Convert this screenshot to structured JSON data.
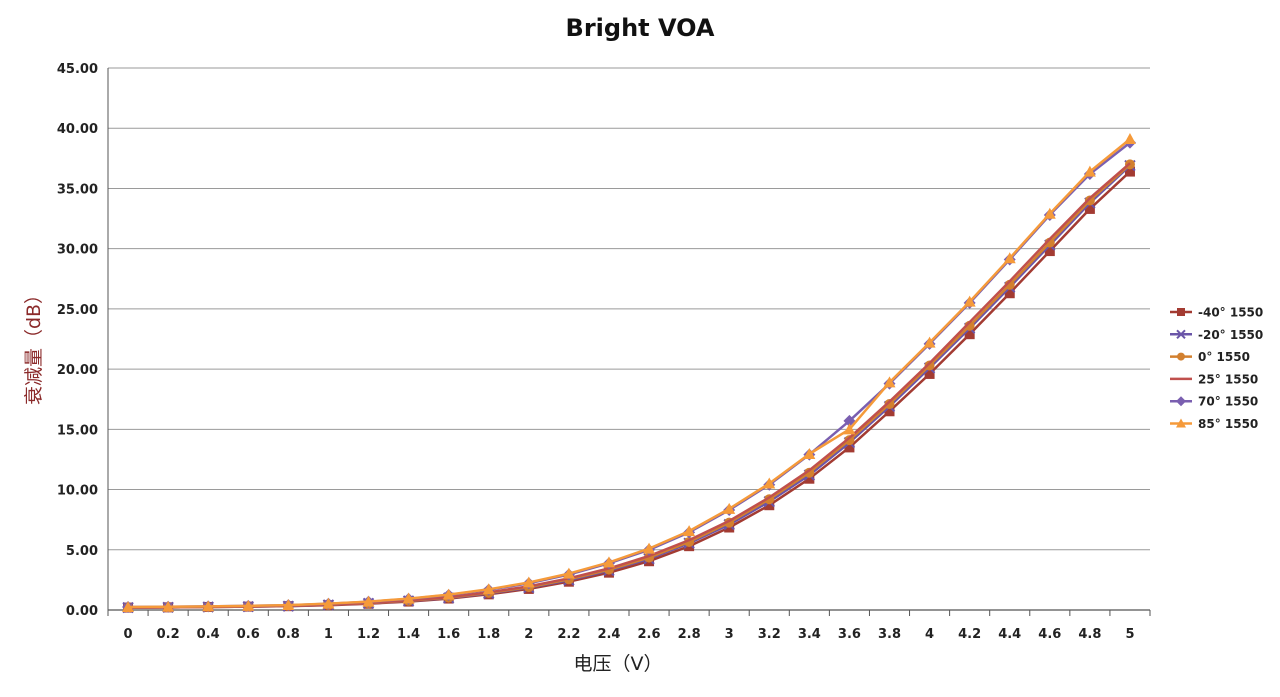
{
  "chart_data": {
    "type": "line",
    "title": "Bright VOA",
    "xlabel": "电压（V）",
    "ylabel": "衰减量（dB）",
    "x": [
      "0",
      "0.2",
      "0.4",
      "0.6",
      "0.8",
      "1",
      "1.2",
      "1.4",
      "1.6",
      "1.8",
      "2",
      "2.2",
      "2.4",
      "2.6",
      "2.8",
      "3",
      "3.2",
      "3.4",
      "3.6",
      "3.8",
      "4",
      "4.2",
      "4.4",
      "4.6",
      "4.8",
      "5"
    ],
    "y_ticks": [
      "0.00",
      "5.00",
      "10.00",
      "15.00",
      "20.00",
      "25.00",
      "30.00",
      "35.00",
      "40.00",
      "45.00"
    ],
    "ylim": [
      0,
      45
    ],
    "grid": "horizontal",
    "legend_position": "right",
    "series": [
      {
        "name": "-40° 1550",
        "color": "#a33b32",
        "marker": "square",
        "values": [
          0.2,
          0.22,
          0.25,
          0.28,
          0.32,
          0.4,
          0.52,
          0.7,
          0.95,
          1.3,
          1.75,
          2.35,
          3.1,
          4.05,
          5.3,
          6.85,
          8.7,
          10.9,
          13.5,
          16.5,
          19.6,
          22.9,
          26.3,
          29.8,
          33.3,
          36.4
        ]
      },
      {
        "name": "-20° 1550",
        "color": "#6a55a8",
        "marker": "x",
        "values": [
          0.2,
          0.22,
          0.25,
          0.28,
          0.32,
          0.42,
          0.55,
          0.75,
          1.0,
          1.38,
          1.85,
          2.48,
          3.28,
          4.25,
          5.55,
          7.1,
          9.0,
          11.2,
          13.9,
          16.9,
          20.1,
          23.4,
          26.8,
          30.3,
          33.8,
          36.9
        ]
      },
      {
        "name": "0° 1550",
        "color": "#d2802f",
        "marker": "circle",
        "values": [
          0.2,
          0.22,
          0.25,
          0.28,
          0.33,
          0.43,
          0.56,
          0.77,
          1.03,
          1.42,
          1.9,
          2.55,
          3.35,
          4.35,
          5.65,
          7.25,
          9.2,
          11.4,
          14.1,
          17.1,
          20.3,
          23.6,
          27.0,
          30.5,
          34.0,
          37.0
        ]
      },
      {
        "name": "25° 1550",
        "color": "#c0504d",
        "marker": "none",
        "values": [
          0.2,
          0.23,
          0.26,
          0.29,
          0.34,
          0.44,
          0.58,
          0.8,
          1.07,
          1.47,
          1.97,
          2.63,
          3.45,
          4.48,
          5.8,
          7.4,
          9.35,
          11.6,
          14.3,
          17.3,
          20.5,
          23.9,
          27.3,
          30.8,
          34.2,
          37.1
        ]
      },
      {
        "name": "70° 1550",
        "color": "#7a5fb0",
        "marker": "diamond",
        "values": [
          0.25,
          0.27,
          0.3,
          0.34,
          0.4,
          0.52,
          0.68,
          0.92,
          1.25,
          1.68,
          2.22,
          2.95,
          3.88,
          5.0,
          6.45,
          8.3,
          10.4,
          12.9,
          15.7,
          18.8,
          22.1,
          25.5,
          29.1,
          32.8,
          36.2,
          38.8
        ]
      },
      {
        "name": "85° 1550",
        "color": "#f59a3a",
        "marker": "triangle",
        "values": [
          0.25,
          0.27,
          0.3,
          0.34,
          0.41,
          0.53,
          0.7,
          0.95,
          1.28,
          1.72,
          2.28,
          3.02,
          3.95,
          5.1,
          6.55,
          8.4,
          10.5,
          12.95,
          15.0,
          18.9,
          22.2,
          25.6,
          29.2,
          32.9,
          36.4,
          39.1
        ]
      }
    ]
  }
}
